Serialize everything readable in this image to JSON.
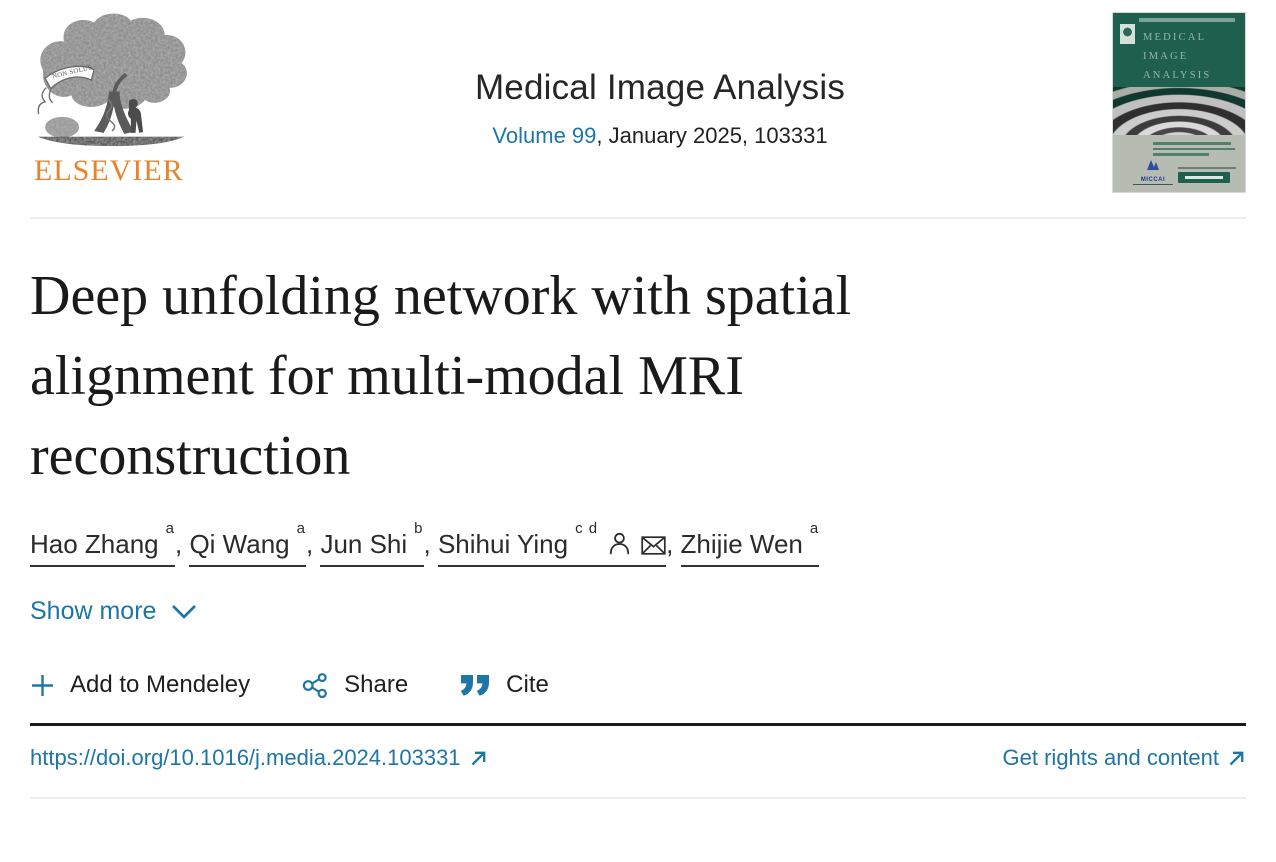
{
  "colors": {
    "link_blue": "#1d76a5",
    "elsevier_orange": "#e8832a",
    "cover_green": "#1f5f4e",
    "cover_band_gray": "#b6bcb2",
    "text_dark": "#212121",
    "divider_dark": "#1a1a1a",
    "divider_light": "#ededed"
  },
  "header": {
    "publisher_wordmark": "ELSEVIER",
    "publisher_motto": "NON SOLUS",
    "journal_title": "Medical Image Analysis",
    "volume_link": "Volume 99",
    "volume_rest": ", January 2025, 103331",
    "cover": {
      "title_lines": [
        "MEDICAL",
        "IMAGE",
        "ANALYSIS"
      ],
      "miccai_label": "MICCAI"
    }
  },
  "article": {
    "title_full": "Deep unfolding network with spatial alignment for multi-modal MRI reconstruction",
    "title_lines": [
      "Deep unfolding network with spatial",
      "alignment for multi-modal MRI",
      "reconstruction"
    ],
    "authors": [
      {
        "name": "Hao Zhang",
        "sup": "a",
        "icons": []
      },
      {
        "name": "Qi Wang",
        "sup": "a",
        "icons": []
      },
      {
        "name": "Jun Shi",
        "sup": "b",
        "icons": []
      },
      {
        "name": "Shihui Ying",
        "sup": "c d",
        "icons": [
          "person",
          "mail"
        ]
      },
      {
        "name": "Zhijie Wen",
        "sup": "a",
        "icons": []
      }
    ],
    "author_separator": ", ",
    "show_more_label": "Show more"
  },
  "actions": [
    {
      "icon": "plus-icon",
      "label": "Add to Mendeley"
    },
    {
      "icon": "share-icon",
      "label": "Share"
    },
    {
      "icon": "cite-icon",
      "label": "Cite"
    }
  ],
  "footer_links": {
    "doi_label": "https://doi.org/10.1016/j.media.2024.103331",
    "rights_label": "Get rights and content"
  }
}
